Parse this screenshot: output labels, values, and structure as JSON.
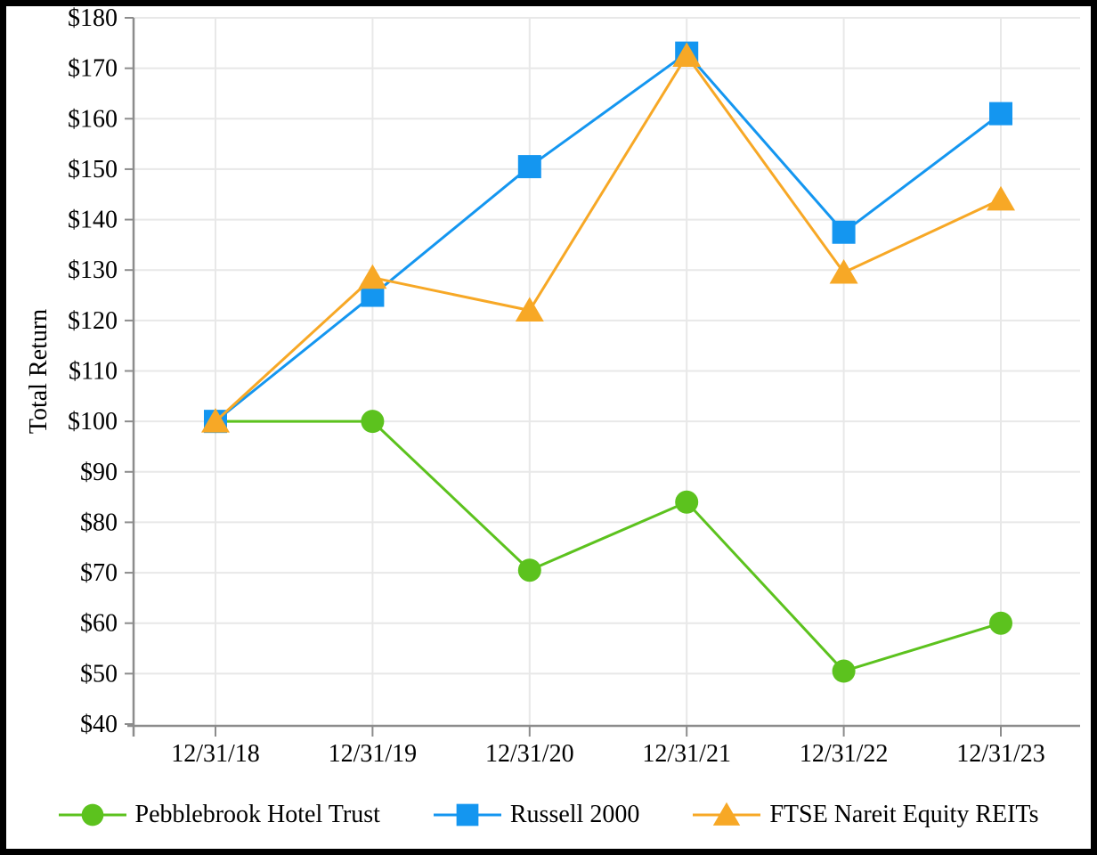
{
  "chart_data": {
    "type": "line",
    "title": "",
    "xlabel": "",
    "ylabel": "Total Return",
    "categories": [
      "12/31/18",
      "12/31/19",
      "12/31/20",
      "12/31/21",
      "12/31/22",
      "12/31/23"
    ],
    "series": [
      {
        "name": "Pebblebrook Hotel Trust",
        "marker": "circle",
        "color": "#5CC21E",
        "values": [
          100,
          100,
          70.5,
          84,
          50.5,
          60
        ]
      },
      {
        "name": "Russell 2000",
        "marker": "square",
        "color": "#1496F0",
        "values": [
          100,
          125,
          150.5,
          173,
          137.5,
          161
        ]
      },
      {
        "name": "FTSE Nareit Equity REITs",
        "marker": "triangle",
        "color": "#F7A826",
        "values": [
          100,
          128.5,
          122,
          172.5,
          129.5,
          144
        ]
      }
    ],
    "ylim": [
      40,
      180
    ],
    "ytick_step": 10,
    "yticks": [
      "$40",
      "$50",
      "$60",
      "$70",
      "$80",
      "$90",
      "$100",
      "$110",
      "$120",
      "$130",
      "$140",
      "$150",
      "$160",
      "$170",
      "$180"
    ],
    "grid": true,
    "legend_position": "bottom"
  },
  "colors": {
    "background": "#ffffff",
    "frame": "#000000",
    "gridline": "#e8e8e8",
    "axis": "#8c8c8c",
    "text": "#000000"
  }
}
